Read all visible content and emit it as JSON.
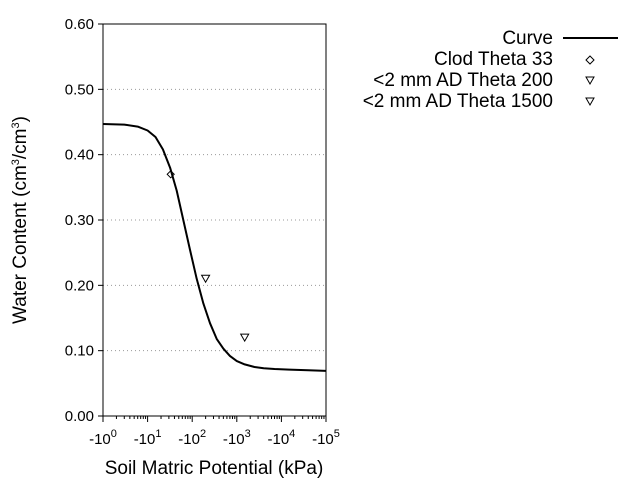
{
  "chart_data": {
    "type": "line",
    "xlabel": "Soil Matric Potential (kPa)",
    "ylabel": {
      "prefix": "Water Content (cm",
      "sup1": "3",
      "mid": "/cm",
      "sup2": "3",
      "suffix": ")"
    },
    "x_scale": "log",
    "xlim": [
      1,
      100000
    ],
    "ylim": [
      0,
      0.6
    ],
    "x_ticks": [
      {
        "value": 1,
        "base": "-10",
        "exp": "0"
      },
      {
        "value": 10,
        "base": "-10",
        "exp": "1"
      },
      {
        "value": 100,
        "base": "-10",
        "exp": "2"
      },
      {
        "value": 1000,
        "base": "-10",
        "exp": "3"
      },
      {
        "value": 10000,
        "base": "-10",
        "exp": "4"
      },
      {
        "value": 100000,
        "base": "-10",
        "exp": "5"
      }
    ],
    "y_ticks": [
      {
        "value": 0,
        "label": "0.00"
      },
      {
        "value": 0.1,
        "label": "0.10"
      },
      {
        "value": 0.2,
        "label": "0.20"
      },
      {
        "value": 0.3,
        "label": "0.30"
      },
      {
        "value": 0.4,
        "label": "0.40"
      },
      {
        "value": 0.5,
        "label": "0.50"
      },
      {
        "value": 0.6,
        "label": "0.60"
      }
    ],
    "grid": "horizontal-dotted",
    "legend_position": "top-right",
    "series": [
      {
        "name": "Curve",
        "kind": "line",
        "color": "#000000",
        "points": [
          {
            "x": 1,
            "y": 0.447
          },
          {
            "x": 3,
            "y": 0.446
          },
          {
            "x": 6,
            "y": 0.443
          },
          {
            "x": 10,
            "y": 0.437
          },
          {
            "x": 15,
            "y": 0.427
          },
          {
            "x": 22,
            "y": 0.408
          },
          {
            "x": 32,
            "y": 0.38
          },
          {
            "x": 45,
            "y": 0.345
          },
          {
            "x": 63,
            "y": 0.3
          },
          {
            "x": 89,
            "y": 0.255
          },
          {
            "x": 126,
            "y": 0.21
          },
          {
            "x": 178,
            "y": 0.172
          },
          {
            "x": 251,
            "y": 0.142
          },
          {
            "x": 355,
            "y": 0.118
          },
          {
            "x": 500,
            "y": 0.103
          },
          {
            "x": 700,
            "y": 0.092
          },
          {
            "x": 1000,
            "y": 0.084
          },
          {
            "x": 1500,
            "y": 0.079
          },
          {
            "x": 2500,
            "y": 0.075
          },
          {
            "x": 4000,
            "y": 0.073
          },
          {
            "x": 7000,
            "y": 0.072
          },
          {
            "x": 15000,
            "y": 0.071
          },
          {
            "x": 40000,
            "y": 0.07
          },
          {
            "x": 100000,
            "y": 0.069
          }
        ]
      },
      {
        "name": "Clod Theta 33",
        "kind": "marker",
        "marker": "diamond",
        "points": [
          {
            "x": 33,
            "y": 0.37
          }
        ]
      },
      {
        "name": "<2 mm AD Theta 200",
        "kind": "marker",
        "marker": "triangle-down",
        "points": [
          {
            "x": 200,
            "y": 0.21
          }
        ]
      },
      {
        "name": "<2 mm AD Theta 1500",
        "kind": "marker",
        "marker": "triangle-down",
        "points": [
          {
            "x": 1500,
            "y": 0.12
          }
        ]
      }
    ]
  }
}
